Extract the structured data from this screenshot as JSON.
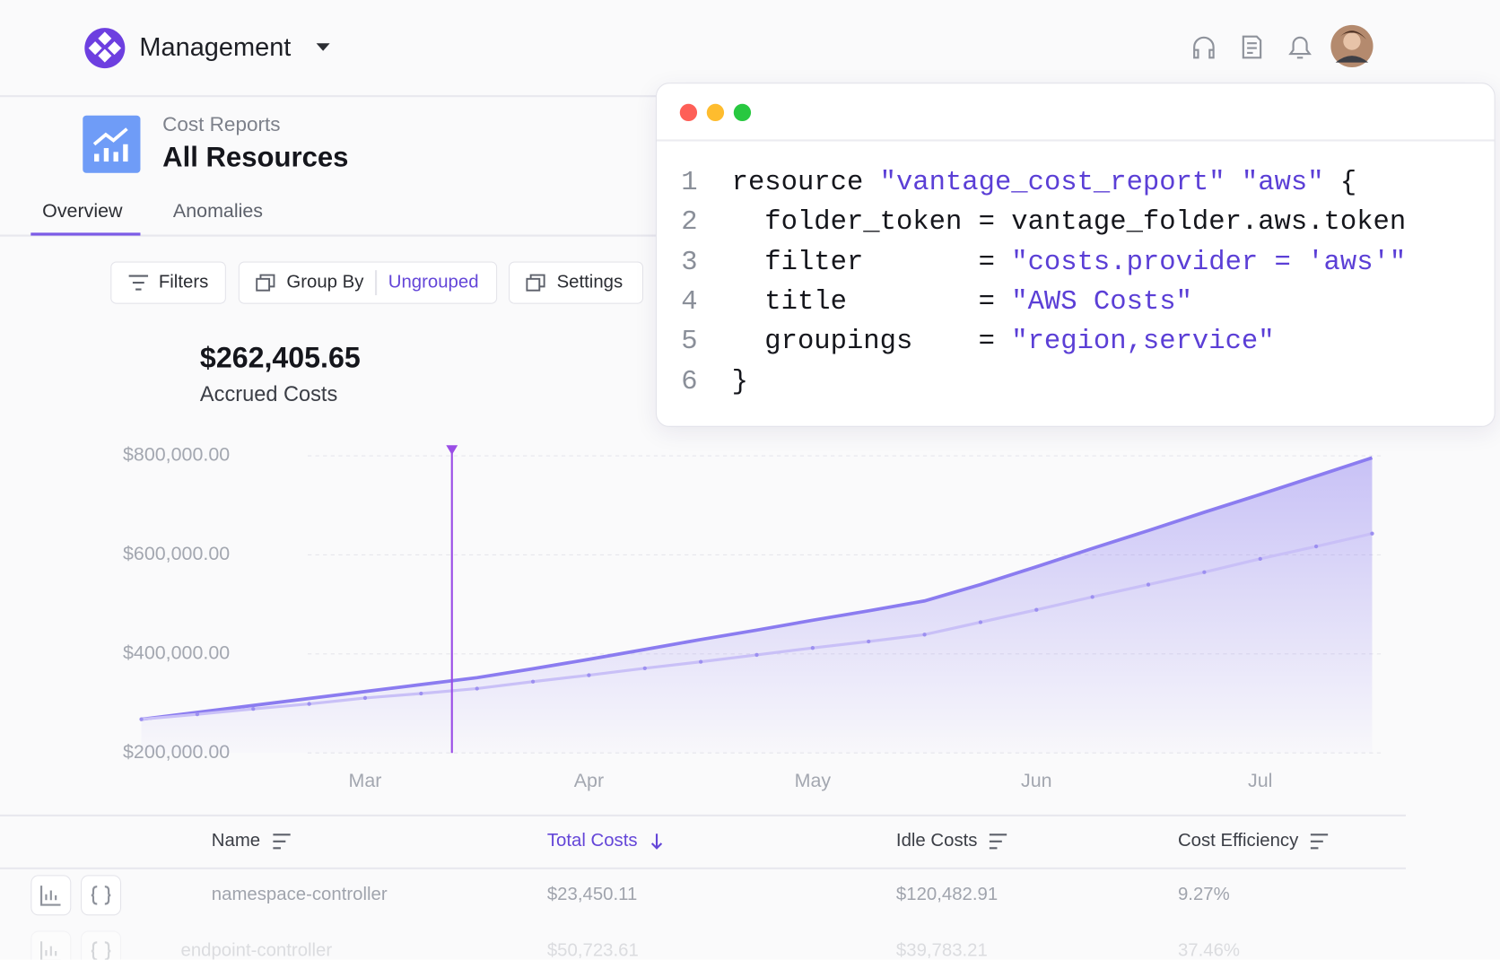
{
  "header": {
    "workspace": "Management"
  },
  "page": {
    "breadcrumb": "Cost Reports",
    "title": "All Resources",
    "tabs": [
      "Overview",
      "Anomalies"
    ]
  },
  "toolbar": {
    "filters": "Filters",
    "group_by": "Group By",
    "group_value": "Ungrouped",
    "settings": "Settings"
  },
  "summary": {
    "amount": "$262,405.65",
    "label": "Accrued Costs"
  },
  "chart_data": {
    "type": "area",
    "categories": [
      null,
      null,
      null,
      null,
      "Mar",
      null,
      null,
      null,
      "Apr",
      null,
      null,
      null,
      "May",
      null,
      null,
      null,
      "Jun",
      null,
      null,
      null,
      "Jul",
      null,
      null
    ],
    "series": [
      {
        "color": "#8b7cf0",
        "values": [
          268000,
          282000,
          296000,
          310000,
          324000,
          338000,
          352000,
          370000,
          389000,
          409000,
          429000,
          448000,
          468000,
          487000,
          507000,
          540000,
          576000,
          613000,
          649000,
          686000,
          722000,
          759000,
          796000
        ]
      },
      {
        "color": "#c9c0f7",
        "values": [
          268000,
          278000,
          289000,
          299000,
          311000,
          320000,
          330000,
          344000,
          357000,
          371000,
          384000,
          398000,
          412000,
          425000,
          439000,
          464000,
          489000,
          515000,
          540000,
          565000,
          592000,
          617000,
          643000
        ]
      }
    ],
    "ylim": [
      200000,
      800000
    ],
    "yticks": [
      {
        "value": 200000,
        "label": "$200,000.00"
      },
      {
        "value": 400000,
        "label": "$400,000.00"
      },
      {
        "value": 600000,
        "label": "$600,000.00"
      },
      {
        "value": 800000,
        "label": "$800,000.00"
      }
    ],
    "grid": true
  },
  "code": {
    "line_numbers": [
      "1",
      "2",
      "3",
      "4",
      "5",
      "6"
    ],
    "lines": [
      [
        "resource ",
        "\"vantage_cost_report\" \"aws\"",
        " {"
      ],
      [
        "  folder_token = vantage_folder.aws.token"
      ],
      [
        "  filter       = ",
        "\"costs.provider = 'aws'\""
      ],
      [
        "  title        = ",
        "\"AWS Costs\""
      ],
      [
        "  groupings    = ",
        "\"region,service\""
      ],
      [
        "}"
      ]
    ]
  },
  "table": {
    "columns": [
      "Name",
      "Total Costs",
      "Idle Costs",
      "Cost Efficiency"
    ],
    "rows": [
      [
        "namespace-controller",
        "$23,450.11",
        "$120,482.91",
        "9.27%"
      ],
      [
        "endpoint-controller",
        "$50,723.61",
        "$39,783.21",
        "37.46%"
      ]
    ]
  }
}
